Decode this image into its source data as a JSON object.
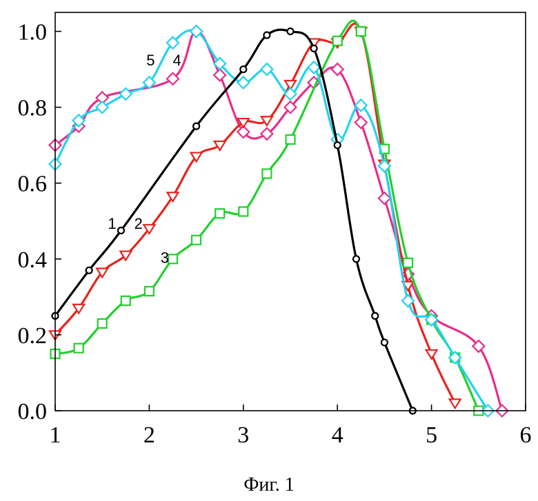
{
  "figure": {
    "caption": "Фиг. 1"
  },
  "chart_data": {
    "type": "line",
    "title": "",
    "xlabel": "",
    "ylabel": "",
    "xlim": [
      1,
      6
    ],
    "ylim": [
      0,
      1.05
    ],
    "grid": false,
    "x_ticks": [
      "1",
      "2",
      "3",
      "4",
      "5",
      "6"
    ],
    "y_ticks": [
      "0.0",
      "0.2",
      "0.4",
      "0.6",
      "0.8",
      "1.0"
    ],
    "series": [
      {
        "name": "1",
        "color": "#000000",
        "marker": "circle",
        "label_pos": [
          1.56,
          0.48
        ],
        "x": [
          1.0,
          1.36,
          1.7,
          2.5,
          3.0,
          3.25,
          3.5,
          3.75,
          4.0,
          4.2,
          4.4,
          4.5,
          4.8
        ],
        "y": [
          0.25,
          0.37,
          0.475,
          0.75,
          0.9,
          0.99,
          1.0,
          0.955,
          0.7,
          0.4,
          0.25,
          0.18,
          0.0
        ]
      },
      {
        "name": "2",
        "color": "#e8231d",
        "marker": "triangle-down",
        "label_pos": [
          1.84,
          0.48
        ],
        "x": [
          1.0,
          1.25,
          1.5,
          1.75,
          2.0,
          2.25,
          2.5,
          2.75,
          3.0,
          3.25,
          3.5,
          3.75,
          4.0,
          4.25,
          4.5,
          4.75,
          5.0,
          5.25
        ],
        "y": [
          0.2,
          0.27,
          0.365,
          0.41,
          0.48,
          0.565,
          0.67,
          0.7,
          0.76,
          0.765,
          0.86,
          0.97,
          0.97,
          1.0,
          0.65,
          0.33,
          0.15,
          0.02
        ]
      },
      {
        "name": "3",
        "color": "#22d02e",
        "marker": "square",
        "label_pos": [
          2.12,
          0.39
        ],
        "x": [
          1.0,
          1.25,
          1.5,
          1.75,
          2.0,
          2.25,
          2.5,
          2.75,
          3.0,
          3.25,
          3.5,
          4.0,
          4.25,
          4.5,
          4.75,
          5.0,
          5.25,
          5.5
        ],
        "y": [
          0.15,
          0.165,
          0.23,
          0.29,
          0.315,
          0.4,
          0.45,
          0.52,
          0.525,
          0.625,
          0.715,
          0.975,
          1.0,
          0.69,
          0.39,
          0.24,
          0.14,
          0.0
        ]
      },
      {
        "name": "4",
        "color": "#e82d8a",
        "marker": "diamond",
        "label_pos": [
          2.25,
          0.91
        ],
        "x": [
          1.0,
          1.25,
          1.5,
          2.25,
          2.5,
          2.75,
          3.0,
          3.25,
          3.5,
          3.75,
          4.0,
          4.25,
          4.5,
          4.75,
          5.0,
          5.5,
          5.75
        ],
        "y": [
          0.7,
          0.75,
          0.825,
          0.875,
          1.0,
          0.885,
          0.735,
          0.73,
          0.8,
          0.865,
          0.9,
          0.76,
          0.56,
          0.36,
          0.25,
          0.17,
          0.0
        ]
      },
      {
        "name": "5",
        "color": "#23d2ef",
        "marker": "diamond",
        "label_pos": [
          1.97,
          0.91
        ],
        "x": [
          1.0,
          1.25,
          1.5,
          1.75,
          2.0,
          2.25,
          2.5,
          2.75,
          3.0,
          3.25,
          3.5,
          3.75,
          4.0,
          4.25,
          4.5,
          4.75,
          5.0,
          5.25,
          5.6
        ],
        "y": [
          0.65,
          0.765,
          0.8,
          0.835,
          0.865,
          0.97,
          1.0,
          0.915,
          0.865,
          0.9,
          0.835,
          0.905,
          0.715,
          0.805,
          0.645,
          0.29,
          0.24,
          0.14,
          0.0
        ]
      }
    ]
  }
}
